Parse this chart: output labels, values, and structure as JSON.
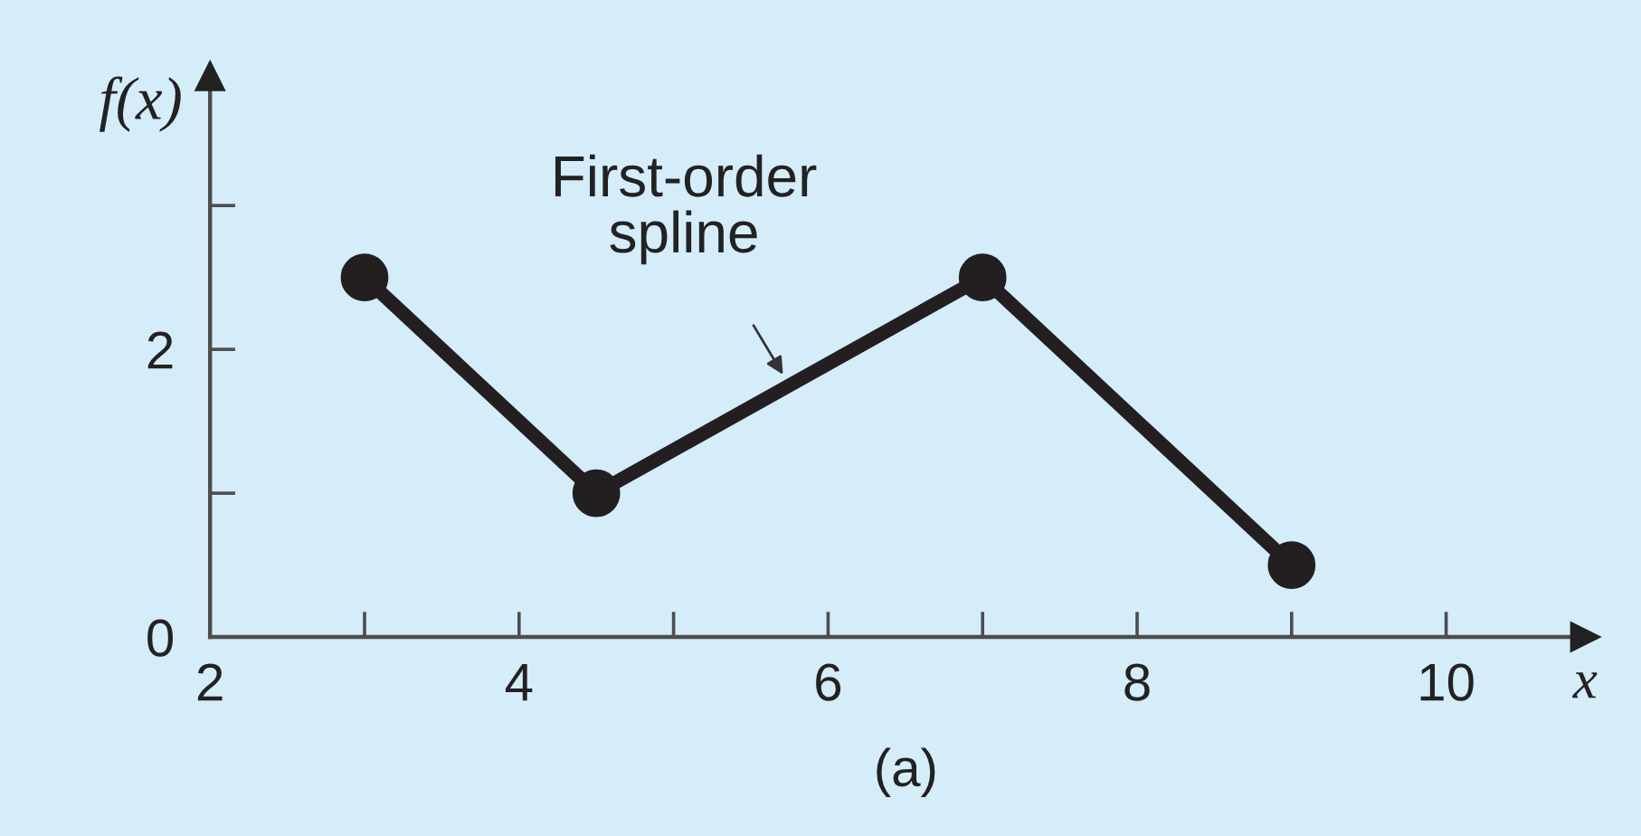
{
  "chart_data": {
    "type": "line",
    "xlabel": "x",
    "ylabel": "f(x)",
    "x": [
      3,
      4.5,
      7,
      9
    ],
    "series": [
      {
        "color": "#231f20",
        "values": [
          2.5,
          1,
          2.5,
          0.5
        ]
      }
    ],
    "xlim": [
      2,
      10.9
    ],
    "ylim": [
      0,
      3.9
    ],
    "xticks": [
      2,
      {
        "value": 3,
        "label": null
      },
      4,
      {
        "value": 5,
        "label": null
      },
      6,
      {
        "value": 7,
        "label": null
      },
      8,
      {
        "value": 9,
        "label": null
      },
      10
    ],
    "yticks": [
      0,
      {
        "value": 1,
        "label": null
      },
      2,
      {
        "value": 3,
        "label": null
      }
    ],
    "annotations": [
      {
        "text": "First-order\nspline",
        "x": 5.75,
        "y": 1.75
      },
      "(a)"
    ],
    "marker": "circle",
    "line_style": "solid",
    "grid": false,
    "legend": false
  }
}
